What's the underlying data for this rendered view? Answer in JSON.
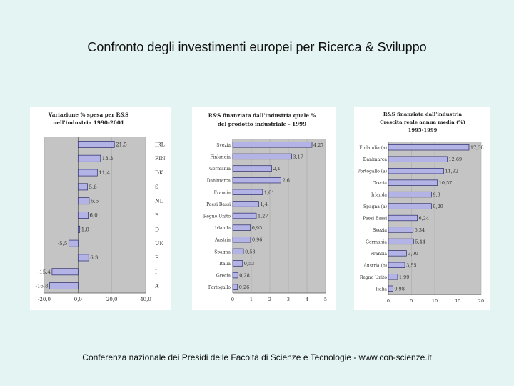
{
  "slide": {
    "title": "Confronto degli investimenti europei per Ricerca & Sviluppo",
    "footer": "Conferenza nazionale dei Presidi delle Facoltà di Scienze e Tecnologie  -   www.con-scienze.it"
  },
  "colors": {
    "bar": "#b3b3e6",
    "bar_stroke": "#2a2a6a",
    "plot_bg": "#c4c4c4",
    "panel_bg": "#ffffff"
  },
  "chart_data": [
    {
      "type": "bar",
      "orientation": "horizontal",
      "title_lines": [
        "Variazione % spesa per R&S",
        "nell'industria 1990-2001"
      ],
      "categories": [
        "IRL",
        "FIN",
        "DK",
        "S",
        "NL",
        "F",
        "D",
        "UK",
        "E",
        "I",
        "A"
      ],
      "values": [
        21.5,
        13.3,
        11.4,
        5.6,
        6.6,
        6.0,
        1.0,
        -5.5,
        6.3,
        -15.4,
        -16.8
      ],
      "value_labels": [
        "21,5",
        "13,3",
        "11,4",
        "5,6",
        "6,6",
        "6,0",
        "1,0",
        "-5,5",
        "6,3",
        "-15,4",
        "-16,8"
      ],
      "category_side": "right",
      "xlim": [
        -20,
        40
      ],
      "xticks": [
        -20,
        0,
        20,
        40
      ],
      "xtick_labels": [
        "-20,0",
        "0,0",
        "20,0",
        "40,0"
      ]
    },
    {
      "type": "bar",
      "orientation": "horizontal",
      "title_lines": [
        "R&S finanziata dall'industria quale %",
        "del prodotto industriale - 1999"
      ],
      "categories": [
        "Svezia",
        "Finlandia",
        "Germania",
        "Danimarca",
        "Francia",
        "Paesi Bassi",
        "Regno Unito",
        "Irlanda",
        "Austria",
        "Spagna",
        "Italia",
        "Grecia",
        "Portogallo"
      ],
      "values": [
        4.27,
        3.17,
        2.1,
        2.6,
        1.61,
        1.4,
        1.27,
        0.95,
        0.96,
        0.58,
        0.53,
        0.28,
        0.26
      ],
      "value_labels": [
        "4,27",
        "3,17",
        "2,1",
        "2,6",
        "1,61",
        "1,4",
        "1,27",
        "0,95",
        "0,96",
        "0,58",
        "0,53",
        "0,28",
        "0,26"
      ],
      "category_side": "left",
      "xlim": [
        0,
        5
      ],
      "xticks": [
        0,
        1,
        2,
        3,
        4,
        5
      ],
      "xtick_labels": [
        "0",
        "1",
        "2",
        "3",
        "4",
        "5"
      ]
    },
    {
      "type": "bar",
      "orientation": "horizontal",
      "title_lines": [
        "R&S finanziata dall'industria",
        "Crescita reale annua media (%)",
        "1995-1999"
      ],
      "categories": [
        "Finlandia (a)",
        "Danimarca",
        "Portogallo (a)",
        "Grecia",
        "Irlanda",
        "Spagna (a)",
        "Paesi Bassi",
        "Svezia",
        "Germania",
        "Francia",
        "Austria (b)",
        "Regno Unito",
        "Italia"
      ],
      "values": [
        17.38,
        12.69,
        11.92,
        10.57,
        9.3,
        9.29,
        6.24,
        5.34,
        5.44,
        3.9,
        3.55,
        1.99,
        0.98
      ],
      "value_labels": [
        "17,38",
        "12,69",
        "11,92",
        "10,57",
        "9,3",
        "9,29",
        "6,24",
        "5,34",
        "5,44",
        "3,90",
        "3,55",
        "1,99",
        "0,98"
      ],
      "category_side": "left",
      "xlim": [
        0,
        20
      ],
      "xticks": [
        0,
        5,
        10,
        15,
        20
      ],
      "xtick_labels": [
        "0",
        "5",
        "10",
        "15",
        "20"
      ]
    }
  ]
}
